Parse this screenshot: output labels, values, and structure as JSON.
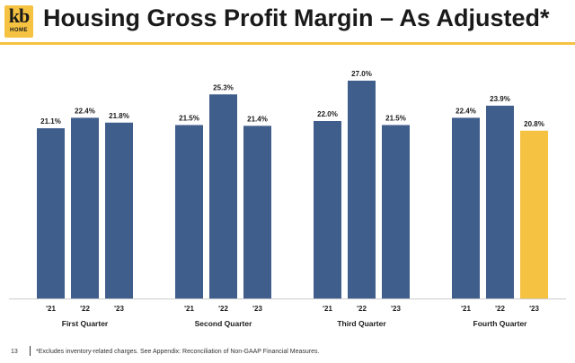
{
  "header": {
    "logo_text": "kb",
    "logo_sub": "HOME",
    "title": "Housing Gross Profit Margin – As Adjusted*"
  },
  "footer": {
    "page_number": "13",
    "footnote": "*Excludes inventory-related charges. See Appendix: Reconciliation of Non-GAAP Financial Measures."
  },
  "colors": {
    "bar": "#405e8c",
    "highlight": "#f5c242",
    "accent": "#f5c242"
  },
  "chart_data": {
    "type": "bar",
    "ylim": [
      0,
      30
    ],
    "groups": [
      {
        "label": "First Quarter",
        "bars": [
          {
            "year": "'21",
            "value": 21.1,
            "label": "21.1%"
          },
          {
            "year": "'22",
            "value": 22.4,
            "label": "22.4%"
          },
          {
            "year": "'23",
            "value": 21.8,
            "label": "21.8%"
          }
        ]
      },
      {
        "label": "Second Quarter",
        "bars": [
          {
            "year": "'21",
            "value": 21.5,
            "label": "21.5%"
          },
          {
            "year": "'22",
            "value": 25.3,
            "label": "25.3%"
          },
          {
            "year": "'23",
            "value": 21.4,
            "label": "21.4%"
          }
        ]
      },
      {
        "label": "Third Quarter",
        "bars": [
          {
            "year": "'21",
            "value": 22.0,
            "label": "22.0%"
          },
          {
            "year": "'22",
            "value": 27.0,
            "label": "27.0%"
          },
          {
            "year": "'23",
            "value": 21.5,
            "label": "21.5%"
          }
        ]
      },
      {
        "label": "Fourth Quarter",
        "bars": [
          {
            "year": "'21",
            "value": 22.4,
            "label": "22.4%"
          },
          {
            "year": "'22",
            "value": 23.9,
            "label": "23.9%"
          },
          {
            "year": "'23",
            "value": 20.8,
            "label": "20.8%",
            "highlight": true
          }
        ]
      }
    ]
  }
}
